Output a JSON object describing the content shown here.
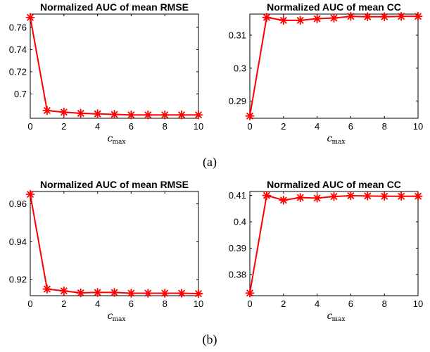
{
  "captions": [
    "(a)",
    "(b)"
  ],
  "chart_data": [
    {
      "type": "line",
      "title": "Normalized AUC of mean RMSE",
      "xlabel_main": "c",
      "xlabel_sub": "max",
      "x": [
        0,
        1,
        2,
        3,
        4,
        5,
        6,
        7,
        8,
        9,
        10
      ],
      "xlim": [
        0,
        10
      ],
      "xticks": [
        0,
        2,
        4,
        6,
        8,
        10
      ],
      "ylim": [
        0.678,
        0.772
      ],
      "yticks": [
        0.7,
        0.72,
        0.74,
        0.76
      ],
      "ytick_labels": [
        "0.7",
        "0.72",
        "0.74",
        "0.76"
      ],
      "grid": false,
      "series": [
        {
          "values": [
            0.769,
            0.685,
            0.6835,
            0.6825,
            0.682,
            0.6815,
            0.681,
            0.681,
            0.681,
            0.681,
            0.681
          ],
          "color": "#ff0000",
          "marker": "asterisk"
        }
      ]
    },
    {
      "type": "line",
      "title": "Normalized AUC of mean CC",
      "xlabel_main": "c",
      "xlabel_sub": "max",
      "x": [
        0,
        1,
        2,
        3,
        4,
        5,
        6,
        7,
        8,
        9,
        10
      ],
      "xlim": [
        0,
        10
      ],
      "xticks": [
        0,
        2,
        4,
        6,
        8,
        10
      ],
      "ylim": [
        0.2848,
        0.3164
      ],
      "yticks": [
        0.29,
        0.3,
        0.31
      ],
      "ytick_labels": [
        "0.29",
        "0.3",
        "0.31"
      ],
      "grid": false,
      "series": [
        {
          "values": [
            0.2855,
            0.3154,
            0.3145,
            0.3145,
            0.315,
            0.3152,
            0.3157,
            0.3156,
            0.3156,
            0.3157,
            0.3157
          ],
          "color": "#ff0000",
          "marker": "asterisk"
        }
      ]
    },
    {
      "type": "line",
      "title": "Normalized AUC of mean RMSE",
      "xlabel_main": "c",
      "xlabel_sub": "max",
      "x": [
        0,
        1,
        2,
        3,
        4,
        5,
        6,
        7,
        8,
        9,
        10
      ],
      "xlim": [
        0,
        10
      ],
      "xticks": [
        0,
        2,
        4,
        6,
        8,
        10
      ],
      "ylim": [
        0.9115,
        0.9665
      ],
      "yticks": [
        0.92,
        0.94,
        0.96
      ],
      "ytick_labels": [
        "0.92",
        "0.94",
        "0.96"
      ],
      "grid": false,
      "series": [
        {
          "values": [
            0.965,
            0.915,
            0.914,
            0.913,
            0.9132,
            0.9132,
            0.9128,
            0.9128,
            0.9128,
            0.9128,
            0.9126
          ],
          "color": "#ff0000",
          "marker": "asterisk"
        }
      ]
    },
    {
      "type": "line",
      "title": "Normalized AUC of mean CC",
      "xlabel_main": "c",
      "xlabel_sub": "max",
      "x": [
        0,
        1,
        2,
        3,
        4,
        5,
        6,
        7,
        8,
        9,
        10
      ],
      "xlim": [
        0,
        10
      ],
      "xticks": [
        0,
        2,
        4,
        6,
        8,
        10
      ],
      "ylim": [
        0.372,
        0.4115
      ],
      "yticks": [
        0.38,
        0.39,
        0.4,
        0.41
      ],
      "ytick_labels": [
        "0.38",
        "0.39",
        "0.4",
        "0.41"
      ],
      "grid": false,
      "series": [
        {
          "values": [
            0.373,
            0.41,
            0.4082,
            0.4092,
            0.409,
            0.4096,
            0.4099,
            0.4098,
            0.4097,
            0.4097,
            0.4097
          ],
          "color": "#ff0000",
          "marker": "asterisk"
        }
      ]
    }
  ]
}
